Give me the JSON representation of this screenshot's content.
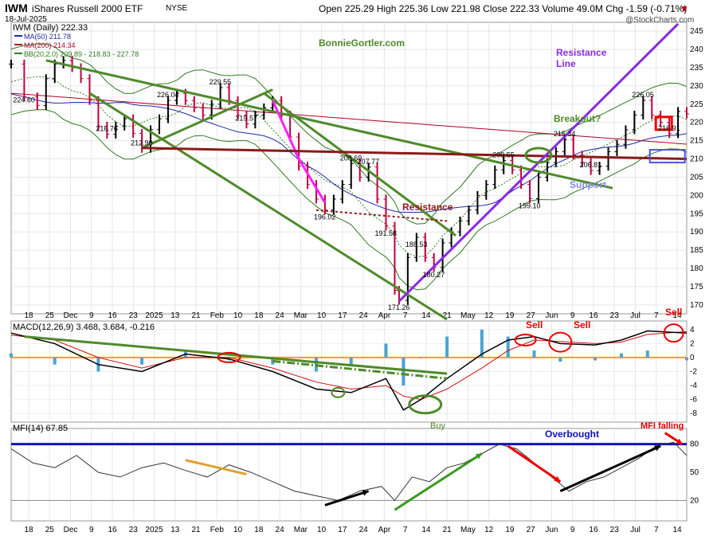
{
  "header": {
    "symbol": "IWM",
    "name": "iShares Russell 2000 ETF",
    "exchange": "NYSE",
    "date": "18-Jul-2025",
    "quote": "Open 225.29  High 225.36  Low 221.98  Close 222.33  Volume 49.0M  Chg -1.59 (-0.71%)",
    "watermark": "@StockCharts.com",
    "caret": "▼"
  },
  "colors": {
    "price_up": "#000000",
    "price_down": "#c0003c",
    "ma50": "#1f2aa8",
    "ma200": "#b0002a",
    "bb": "#2e7d1e",
    "trend_green": "#4e8a2a",
    "resistance_purple": "#8a2be2",
    "support_brown": "#8b1a1a",
    "magenta": "#ff20ff",
    "macd_line": "#000000",
    "macd_signal": "#d01010",
    "histogram": "#4aa3d6",
    "zero_line": "#f0a020",
    "mfi_line": "#333333",
    "overbought_line": "#1010c0"
  },
  "chart_data": [
    {
      "type": "line",
      "title": "IWM (Daily) 222.33",
      "legend": [
        "MA(50) 211.78",
        "MA(200) 214.34",
        "BB(20,2.0) 209.89 - 218.83 - 227.78"
      ],
      "legend_placement": "top-left",
      "y_ticks": [
        "245",
        "240",
        "235",
        "230",
        "225",
        "220",
        "215",
        "210",
        "205",
        "200",
        "195",
        "190",
        "185",
        "180",
        "175",
        "170"
      ],
      "ylim": [
        168,
        247
      ],
      "x_ticks": [
        "18",
        "25",
        "Dec",
        "9",
        "16",
        "23",
        "2025",
        "13",
        "21",
        "Feb",
        "10",
        "18",
        "24",
        "Mar",
        "10",
        "17",
        "24",
        "Apr",
        "7",
        "14",
        "21",
        "May",
        "12",
        "19",
        "27",
        "Jun",
        "9",
        "16",
        "23",
        "Jul",
        "7",
        "14"
      ],
      "close_path": [
        [
          0,
          236
        ],
        [
          3,
          227
        ],
        [
          6,
          224.6
        ],
        [
          8,
          232
        ],
        [
          10,
          236
        ],
        [
          12,
          237
        ],
        [
          14,
          235
        ],
        [
          16,
          232
        ],
        [
          18,
          226
        ],
        [
          20,
          219
        ],
        [
          22,
          216.76
        ],
        [
          24,
          219
        ],
        [
          26,
          221
        ],
        [
          28,
          217
        ],
        [
          30,
          212.9
        ],
        [
          32,
          218
        ],
        [
          34,
          221
        ],
        [
          36,
          226.04
        ],
        [
          38,
          228
        ],
        [
          40,
          226
        ],
        [
          42,
          224
        ],
        [
          44,
          222
        ],
        [
          46,
          225
        ],
        [
          48,
          229.55
        ],
        [
          50,
          226
        ],
        [
          52,
          222
        ],
        [
          54,
          219.57
        ],
        [
          56,
          222
        ],
        [
          58,
          224
        ],
        [
          60,
          226
        ],
        [
          62,
          222
        ],
        [
          64,
          216
        ],
        [
          66,
          208
        ],
        [
          68,
          203
        ],
        [
          70,
          199
        ],
        [
          72,
          196.02
        ],
        [
          74,
          199
        ],
        [
          76,
          203
        ],
        [
          78,
          208.69
        ],
        [
          80,
          205
        ],
        [
          82,
          207.77
        ],
        [
          84,
          199
        ],
        [
          86,
          191.58
        ],
        [
          88,
          174
        ],
        [
          89,
          171.26
        ],
        [
          91,
          183
        ],
        [
          93,
          188.53
        ],
        [
          95,
          183
        ],
        [
          97,
          180.27
        ],
        [
          99,
          187
        ],
        [
          101,
          190
        ],
        [
          103,
          193
        ],
        [
          105,
          196
        ],
        [
          107,
          200
        ],
        [
          109,
          203
        ],
        [
          111,
          207
        ],
        [
          113,
          209.55
        ],
        [
          115,
          207
        ],
        [
          117,
          203
        ],
        [
          119,
          199.1
        ],
        [
          121,
          205
        ],
        [
          123,
          209
        ],
        [
          125,
          212
        ],
        [
          127,
          215.34
        ],
        [
          129,
          211
        ],
        [
          131,
          209
        ],
        [
          133,
          206.81
        ],
        [
          135,
          208
        ],
        [
          137,
          212
        ],
        [
          139,
          214
        ],
        [
          141,
          218
        ],
        [
          143,
          222
        ],
        [
          145,
          226.05
        ],
        [
          147,
          222
        ],
        [
          149,
          220
        ],
        [
          151,
          216.91
        ],
        [
          153,
          223
        ],
        [
          155,
          222.33
        ]
      ],
      "price_labels": [
        {
          "text": "224.60",
          "x": 3,
          "y": 224.6
        },
        {
          "text": "216.76",
          "x": 22,
          "y": 216.76
        },
        {
          "text": "212.90",
          "x": 30,
          "y": 212.9
        },
        {
          "text": "226.04",
          "x": 36,
          "y": 226.04
        },
        {
          "text": "229.55",
          "x": 48,
          "y": 229.55
        },
        {
          "text": "219.57",
          "x": 54,
          "y": 219.57
        },
        {
          "text": "196.02",
          "x": 72,
          "y": 196.02
        },
        {
          "text": "208.69",
          "x": 78,
          "y": 208.69
        },
        {
          "text": "207.77",
          "x": 82,
          "y": 207.77
        },
        {
          "text": "191.58",
          "x": 86,
          "y": 191.58
        },
        {
          "text": "188.53",
          "x": 93,
          "y": 188.53
        },
        {
          "text": "180.27",
          "x": 97,
          "y": 180.27
        },
        {
          "text": "171.26",
          "x": 89,
          "y": 171.26
        },
        {
          "text": "209.55",
          "x": 113,
          "y": 209.55
        },
        {
          "text": "199.10",
          "x": 119,
          "y": 199.1
        },
        {
          "text": "215.34",
          "x": 127,
          "y": 215.34
        },
        {
          "text": "206.81",
          "x": 133,
          "y": 206.81
        },
        {
          "text": "226.05",
          "x": 145,
          "y": 226.05
        },
        {
          "text": "216.91",
          "x": 151,
          "y": 216.91
        }
      ],
      "annotations": [
        "BonnieGortler.com",
        "Resistance",
        "Line",
        "Breakout?",
        "Support",
        "Resistance"
      ]
    },
    {
      "type": "line",
      "title": "MACD(12,26,9) 3.468, 3.684, -0.216",
      "y_ticks": [
        "4",
        "2",
        "0",
        "-2",
        "-4",
        "-6",
        "-8"
      ],
      "ylim": [
        -9,
        5
      ],
      "macd_path": [
        [
          0,
          3.5
        ],
        [
          10,
          2
        ],
        [
          20,
          -1
        ],
        [
          30,
          -2
        ],
        [
          40,
          0.5
        ],
        [
          50,
          -0.2
        ],
        [
          60,
          -2
        ],
        [
          70,
          -4.5
        ],
        [
          78,
          -5
        ],
        [
          86,
          -3
        ],
        [
          90,
          -7.5
        ],
        [
          94,
          -6
        ],
        [
          100,
          -3
        ],
        [
          108,
          0.5
        ],
        [
          114,
          2.5
        ],
        [
          120,
          3
        ],
        [
          126,
          2
        ],
        [
          134,
          1.8
        ],
        [
          140,
          2.5
        ],
        [
          146,
          3.8
        ],
        [
          155,
          3.5
        ]
      ],
      "signal_path": [
        [
          0,
          3.2
        ],
        [
          10,
          2.5
        ],
        [
          20,
          0
        ],
        [
          30,
          -1.5
        ],
        [
          40,
          0
        ],
        [
          50,
          0
        ],
        [
          60,
          -1.5
        ],
        [
          70,
          -3.5
        ],
        [
          78,
          -4.5
        ],
        [
          86,
          -4
        ],
        [
          90,
          -5.5
        ],
        [
          94,
          -6
        ],
        [
          100,
          -4.5
        ],
        [
          108,
          -1.5
        ],
        [
          114,
          1
        ],
        [
          120,
          2.5
        ],
        [
          126,
          2.3
        ],
        [
          134,
          2
        ],
        [
          140,
          2.2
        ],
        [
          146,
          3.3
        ],
        [
          155,
          3.7
        ]
      ],
      "annotations": [
        "Sell",
        "Sell",
        "Sell",
        "Buy"
      ]
    },
    {
      "type": "line",
      "title": "MFI(14) 67.85",
      "y_ticks": [
        "80",
        "50",
        "20"
      ],
      "ylim": [
        0,
        95
      ],
      "mfi_path": [
        [
          0,
          75
        ],
        [
          5,
          60
        ],
        [
          10,
          55
        ],
        [
          15,
          68
        ],
        [
          20,
          50
        ],
        [
          25,
          45
        ],
        [
          30,
          55
        ],
        [
          35,
          60
        ],
        [
          40,
          52
        ],
        [
          45,
          45
        ],
        [
          50,
          58
        ],
        [
          55,
          50
        ],
        [
          60,
          40
        ],
        [
          65,
          30
        ],
        [
          70,
          25
        ],
        [
          75,
          20
        ],
        [
          80,
          30
        ],
        [
          85,
          35
        ],
        [
          88,
          20
        ],
        [
          92,
          45
        ],
        [
          96,
          40
        ],
        [
          100,
          55
        ],
        [
          104,
          60
        ],
        [
          108,
          70
        ],
        [
          112,
          80
        ],
        [
          116,
          75
        ],
        [
          120,
          60
        ],
        [
          124,
          45
        ],
        [
          128,
          30
        ],
        [
          132,
          40
        ],
        [
          136,
          45
        ],
        [
          140,
          55
        ],
        [
          144,
          65
        ],
        [
          148,
          78
        ],
        [
          152,
          82
        ],
        [
          155,
          68
        ]
      ],
      "annotations": [
        "Overbought",
        "MFI falling"
      ]
    }
  ]
}
